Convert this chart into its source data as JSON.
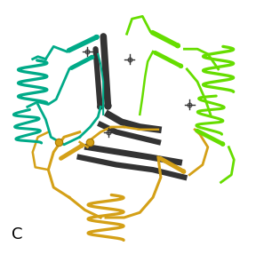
{
  "label": "C",
  "label_fontsize": 13,
  "label_color": "#000000",
  "background_color": "#ffffff",
  "colors": {
    "teal": "#00aa88",
    "lime_green": "#66dd00",
    "gold": "#d4a017",
    "dark_gray": "#333333",
    "light_gray": "#999999"
  },
  "fig_width": 2.97,
  "fig_height": 2.86,
  "dpi": 100
}
